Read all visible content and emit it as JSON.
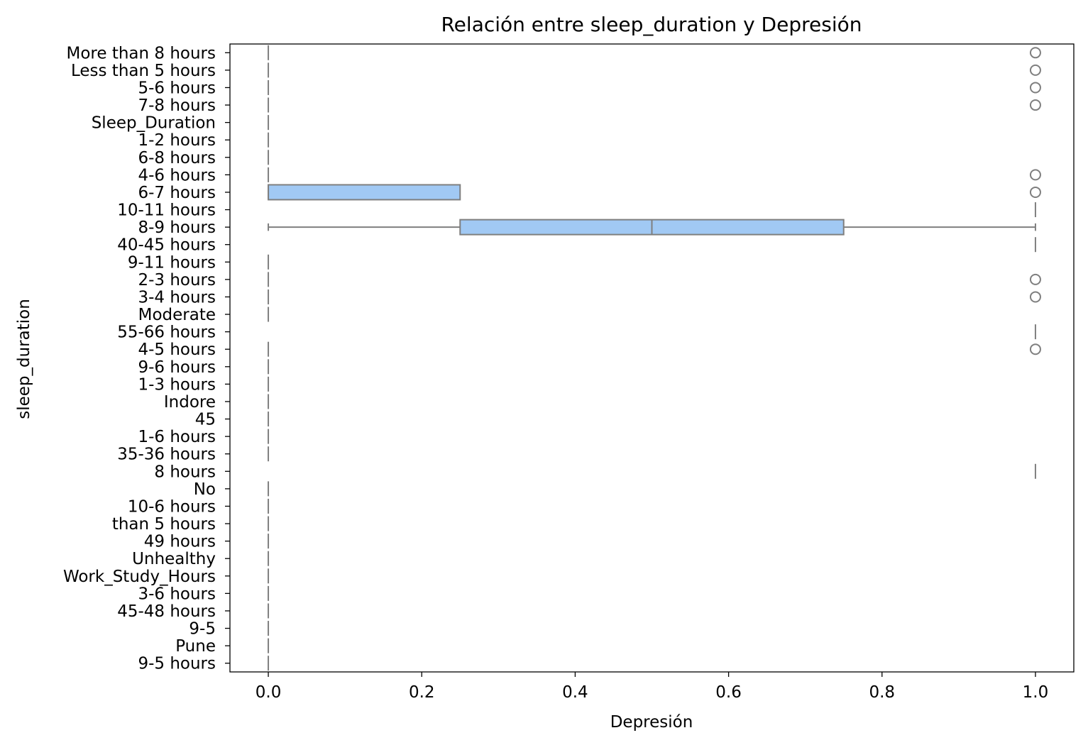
{
  "chart_data": {
    "type": "box",
    "orientation": "horizontal",
    "title": "Relación entre sleep_duration y Depresión",
    "xlabel": "Depresión",
    "ylabel": "sleep_duration",
    "xlim": [
      -0.05,
      1.05
    ],
    "xticks": [
      0.0,
      0.2,
      0.4,
      0.6,
      0.8,
      1.0
    ],
    "xtick_labels": [
      "0.0",
      "0.2",
      "0.4",
      "0.6",
      "0.8",
      "1.0"
    ],
    "grid": false,
    "legend": "none",
    "colors": {
      "box_fill": "#a1c9f4",
      "line": "#7f7f7f"
    },
    "categories": [
      "More than 8 hours",
      "Less than 5 hours",
      "5-6 hours",
      "7-8 hours",
      "Sleep_Duration",
      "1-2 hours",
      "6-8 hours",
      "4-6 hours",
      "6-7 hours",
      "10-11 hours",
      "8-9 hours",
      "40-45 hours",
      "9-11 hours",
      "2-3 hours",
      "3-4 hours",
      "Moderate",
      "55-66 hours",
      "4-5 hours",
      "9-6 hours",
      "1-3 hours",
      "Indore",
      "45",
      "1-6 hours",
      "35-36 hours",
      "8 hours",
      "No",
      "10-6 hours",
      "than 5 hours",
      "49 hours",
      "Unhealthy",
      "Work_Study_Hours",
      "3-6 hours",
      "45-48 hours",
      "9-5",
      "Pune",
      "9-5 hours"
    ],
    "boxes": [
      {
        "category": "More than 8 hours",
        "whislo": 0,
        "q1": 0,
        "med": 0,
        "q3": 0,
        "whishi": 0,
        "fliers": [
          1.0
        ]
      },
      {
        "category": "Less than 5 hours",
        "whislo": 0,
        "q1": 0,
        "med": 0,
        "q3": 0,
        "whishi": 0,
        "fliers": [
          1.0
        ]
      },
      {
        "category": "5-6 hours",
        "whislo": 0,
        "q1": 0,
        "med": 0,
        "q3": 0,
        "whishi": 0,
        "fliers": [
          1.0
        ]
      },
      {
        "category": "7-8 hours",
        "whislo": 0,
        "q1": 0,
        "med": 0,
        "q3": 0,
        "whishi": 0,
        "fliers": [
          1.0
        ]
      },
      {
        "category": "Sleep_Duration",
        "whislo": 0,
        "q1": 0,
        "med": 0,
        "q3": 0,
        "whishi": 0,
        "fliers": []
      },
      {
        "category": "1-2 hours",
        "whislo": 0,
        "q1": 0,
        "med": 0,
        "q3": 0,
        "whishi": 0,
        "fliers": []
      },
      {
        "category": "6-8 hours",
        "whislo": 0,
        "q1": 0,
        "med": 0,
        "q3": 0,
        "whishi": 0,
        "fliers": []
      },
      {
        "category": "4-6 hours",
        "whislo": 0,
        "q1": 0,
        "med": 0,
        "q3": 0,
        "whishi": 0,
        "fliers": [
          1.0
        ]
      },
      {
        "category": "6-7 hours",
        "whislo": 0,
        "q1": 0,
        "med": 0,
        "q3": 0.25,
        "whishi": 0.25,
        "fliers": [
          1.0
        ]
      },
      {
        "category": "10-11 hours",
        "whislo": 1,
        "q1": 1,
        "med": 1,
        "q3": 1,
        "whishi": 1,
        "fliers": []
      },
      {
        "category": "8-9 hours",
        "whislo": 0,
        "q1": 0.25,
        "med": 0.5,
        "q3": 0.75,
        "whishi": 1.0,
        "fliers": []
      },
      {
        "category": "40-45 hours",
        "whislo": 1,
        "q1": 1,
        "med": 1,
        "q3": 1,
        "whishi": 1,
        "fliers": []
      },
      {
        "category": "9-11 hours",
        "whislo": 0,
        "q1": 0,
        "med": 0,
        "q3": 0,
        "whishi": 0,
        "fliers": []
      },
      {
        "category": "2-3 hours",
        "whislo": 0,
        "q1": 0,
        "med": 0,
        "q3": 0,
        "whishi": 0,
        "fliers": [
          1.0
        ]
      },
      {
        "category": "3-4 hours",
        "whislo": 0,
        "q1": 0,
        "med": 0,
        "q3": 0,
        "whishi": 0,
        "fliers": [
          1.0
        ]
      },
      {
        "category": "Moderate",
        "whislo": 0,
        "q1": 0,
        "med": 0,
        "q3": 0,
        "whishi": 0,
        "fliers": []
      },
      {
        "category": "55-66 hours",
        "whislo": 1,
        "q1": 1,
        "med": 1,
        "q3": 1,
        "whishi": 1,
        "fliers": []
      },
      {
        "category": "4-5 hours",
        "whislo": 0,
        "q1": 0,
        "med": 0,
        "q3": 0,
        "whishi": 0,
        "fliers": [
          1.0
        ]
      },
      {
        "category": "9-6 hours",
        "whislo": 0,
        "q1": 0,
        "med": 0,
        "q3": 0,
        "whishi": 0,
        "fliers": []
      },
      {
        "category": "1-3 hours",
        "whislo": 0,
        "q1": 0,
        "med": 0,
        "q3": 0,
        "whishi": 0,
        "fliers": []
      },
      {
        "category": "Indore",
        "whislo": 0,
        "q1": 0,
        "med": 0,
        "q3": 0,
        "whishi": 0,
        "fliers": []
      },
      {
        "category": "45",
        "whislo": 0,
        "q1": 0,
        "med": 0,
        "q3": 0,
        "whishi": 0,
        "fliers": []
      },
      {
        "category": "1-6 hours",
        "whislo": 0,
        "q1": 0,
        "med": 0,
        "q3": 0,
        "whishi": 0,
        "fliers": []
      },
      {
        "category": "35-36 hours",
        "whislo": 0,
        "q1": 0,
        "med": 0,
        "q3": 0,
        "whishi": 0,
        "fliers": []
      },
      {
        "category": "8 hours",
        "whislo": 1,
        "q1": 1,
        "med": 1,
        "q3": 1,
        "whishi": 1,
        "fliers": []
      },
      {
        "category": "No",
        "whislo": 0,
        "q1": 0,
        "med": 0,
        "q3": 0,
        "whishi": 0,
        "fliers": []
      },
      {
        "category": "10-6 hours",
        "whislo": 0,
        "q1": 0,
        "med": 0,
        "q3": 0,
        "whishi": 0,
        "fliers": []
      },
      {
        "category": "than 5 hours",
        "whislo": 0,
        "q1": 0,
        "med": 0,
        "q3": 0,
        "whishi": 0,
        "fliers": []
      },
      {
        "category": "49 hours",
        "whislo": 0,
        "q1": 0,
        "med": 0,
        "q3": 0,
        "whishi": 0,
        "fliers": []
      },
      {
        "category": "Unhealthy",
        "whislo": 0,
        "q1": 0,
        "med": 0,
        "q3": 0,
        "whishi": 0,
        "fliers": []
      },
      {
        "category": "Work_Study_Hours",
        "whislo": 0,
        "q1": 0,
        "med": 0,
        "q3": 0,
        "whishi": 0,
        "fliers": []
      },
      {
        "category": "3-6 hours",
        "whislo": 0,
        "q1": 0,
        "med": 0,
        "q3": 0,
        "whishi": 0,
        "fliers": []
      },
      {
        "category": "45-48 hours",
        "whislo": 0,
        "q1": 0,
        "med": 0,
        "q3": 0,
        "whishi": 0,
        "fliers": []
      },
      {
        "category": "9-5",
        "whislo": 0,
        "q1": 0,
        "med": 0,
        "q3": 0,
        "whishi": 0,
        "fliers": []
      },
      {
        "category": "Pune",
        "whislo": 0,
        "q1": 0,
        "med": 0,
        "q3": 0,
        "whishi": 0,
        "fliers": []
      },
      {
        "category": "9-5 hours",
        "whislo": 0,
        "q1": 0,
        "med": 0,
        "q3": 0,
        "whishi": 0,
        "fliers": []
      }
    ]
  }
}
